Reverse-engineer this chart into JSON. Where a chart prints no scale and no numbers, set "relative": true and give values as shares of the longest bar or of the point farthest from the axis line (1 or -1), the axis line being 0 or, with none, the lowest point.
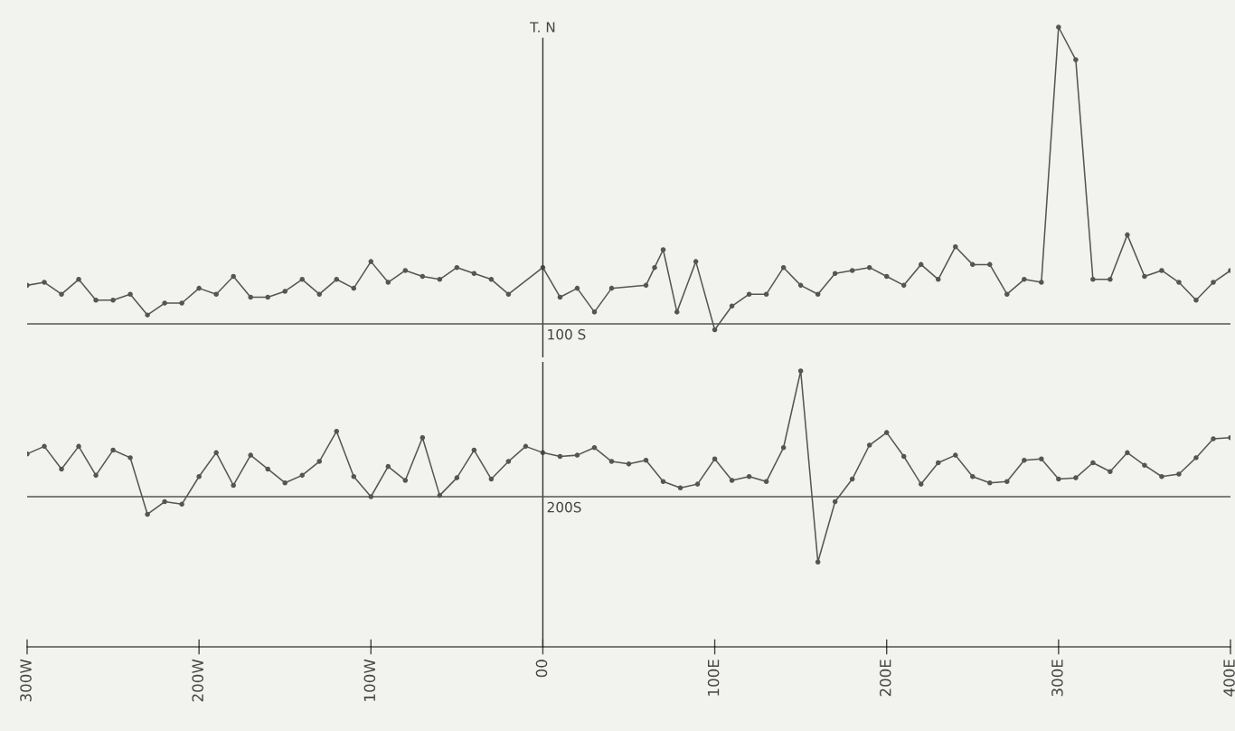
{
  "chart_data": [
    {
      "type": "line",
      "relative": true,
      "xlim": [
        -300,
        400
      ],
      "tick_labels": false,
      "marker": "circle",
      "line_style": "solid",
      "grid": false,
      "legend": false,
      "ref_lines": [
        {
          "axis": "x",
          "value": 0,
          "label": "T. N"
        },
        {
          "axis": "y",
          "value": 0,
          "label": "100 S"
        }
      ],
      "series": [
        {
          "color": "#555555",
          "x": [
            -300,
            -290,
            -280,
            -270,
            -260,
            -250,
            -240,
            -230,
            -220,
            -210,
            -200,
            -190,
            -180,
            -170,
            -160,
            -150,
            -140,
            -130,
            -120,
            -110,
            -100,
            -90,
            -80,
            -70,
            -60,
            -50,
            -40,
            -30,
            -20,
            0,
            10,
            20,
            30,
            40,
            60,
            65,
            70,
            78,
            89,
            100,
            110,
            120,
            130,
            140,
            150,
            160,
            170,
            180,
            190,
            200,
            210,
            220,
            230,
            240,
            250,
            260,
            270,
            280,
            290,
            300,
            310,
            320,
            330,
            340,
            350,
            360,
            370,
            380,
            390,
            400
          ],
          "values": [
            0.13,
            0.14,
            0.1,
            0.15,
            0.08,
            0.08,
            0.1,
            0.03,
            0.07,
            0.07,
            0.12,
            0.1,
            0.16,
            0.09,
            0.09,
            0.11,
            0.15,
            0.1,
            0.15,
            0.12,
            0.21,
            0.14,
            0.18,
            0.16,
            0.15,
            0.19,
            0.17,
            0.15,
            0.1,
            0.19,
            0.09,
            0.12,
            0.04,
            0.12,
            0.13,
            0.19,
            0.25,
            0.04,
            0.21,
            -0.02,
            0.06,
            0.1,
            0.1,
            0.19,
            0.13,
            0.1,
            0.17,
            0.18,
            0.19,
            0.16,
            0.13,
            0.2,
            0.15,
            0.26,
            0.2,
            0.2,
            0.1,
            0.15,
            0.14,
            1,
            0.89,
            0.15,
            0.15,
            0.3,
            0.16,
            0.18,
            0.14,
            0.08,
            0.14,
            0.18
          ]
        }
      ]
    },
    {
      "type": "line",
      "relative": true,
      "xlim": [
        -300,
        400
      ],
      "tick_labels": "x",
      "marker": "circle",
      "line_style": "solid",
      "grid": false,
      "legend": false,
      "xticks": [
        {
          "value": -300,
          "label": "300W"
        },
        {
          "value": -200,
          "label": "200W"
        },
        {
          "value": -100,
          "label": "100W"
        },
        {
          "value": 0,
          "label": "00"
        },
        {
          "value": 100,
          "label": "100E"
        },
        {
          "value": 200,
          "label": "200E"
        },
        {
          "value": 300,
          "label": "300E"
        },
        {
          "value": 400,
          "label": "400E"
        }
      ],
      "ref_lines": [
        {
          "axis": "x",
          "value": 0,
          "label": null
        },
        {
          "axis": "y",
          "value": 0,
          "label": "200S"
        }
      ],
      "series": [
        {
          "color": "#555555",
          "x": [
            -300,
            -290,
            -280,
            -270,
            -260,
            -250,
            -240,
            -230,
            -220,
            -210,
            -200,
            -190,
            -180,
            -170,
            -160,
            -150,
            -140,
            -130,
            -120,
            -110,
            -100,
            -90,
            -80,
            -70,
            -60,
            -50,
            -40,
            -30,
            -20,
            -10,
            0,
            10,
            20,
            30,
            40,
            50,
            60,
            70,
            80,
            90,
            100,
            110,
            120,
            130,
            140,
            150,
            160,
            170,
            180,
            190,
            200,
            210,
            220,
            230,
            240,
            250,
            260,
            270,
            280,
            290,
            300,
            310,
            320,
            330,
            340,
            350,
            360,
            370,
            380,
            390,
            400
          ],
          "values": [
            0.34,
            0.4,
            0.22,
            0.4,
            0.17,
            0.37,
            0.31,
            -0.14,
            -0.04,
            -0.06,
            0.16,
            0.35,
            0.09,
            0.33,
            0.22,
            0.11,
            0.17,
            0.28,
            0.52,
            0.16,
            0,
            0.24,
            0.13,
            0.47,
            0.01,
            0.15,
            0.37,
            0.14,
            0.28,
            0.4,
            0.35,
            0.32,
            0.33,
            0.39,
            0.28,
            0.26,
            0.29,
            0.12,
            0.07,
            0.1,
            0.3,
            0.13,
            0.16,
            0.12,
            0.39,
            1,
            -0.52,
            -0.04,
            0.14,
            0.41,
            0.51,
            0.32,
            0.1,
            0.27,
            0.33,
            0.16,
            0.11,
            0.12,
            0.29,
            0.3,
            0.14,
            0.15,
            0.27,
            0.2,
            0.35,
            0.25,
            0.16,
            0.18,
            0.31,
            0.46,
            0.47
          ]
        }
      ]
    }
  ]
}
